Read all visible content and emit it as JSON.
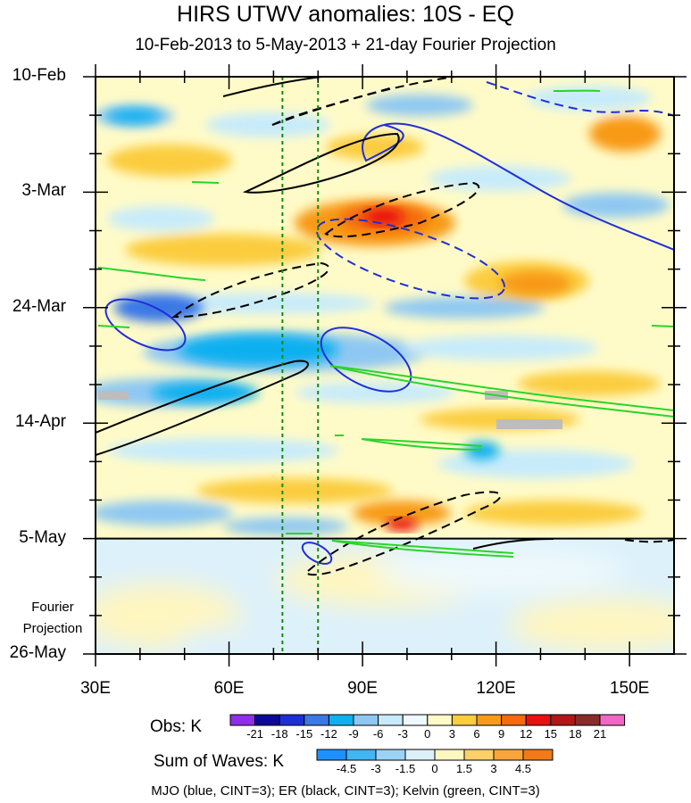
{
  "chart_data": {
    "type": "heatmap",
    "title": "HIRS UTWV anomalies: 10S - EQ",
    "subtitle": "10-Feb-2013 to 5-May-2013 + 21-day Fourier Projection",
    "xlabel": "",
    "ylabel": "",
    "x_range": [
      30,
      160
    ],
    "x_ticks": [
      "30E",
      "60E",
      "90E",
      "120E",
      "150E"
    ],
    "y_ticks": [
      "10-Feb",
      "3-Mar",
      "24-Mar",
      "14-Apr",
      "5-May",
      "26-May"
    ],
    "projection_start": "5-May",
    "projection_label": [
      "Fourier",
      "Projection"
    ],
    "reference_longitudes_dotted": [
      72,
      80
    ],
    "obs_colorbar": {
      "title": "Obs: K",
      "levels": [
        "-21",
        "-18",
        "-15",
        "-12",
        "-9",
        "-6",
        "-3",
        "0",
        "3",
        "6",
        "9",
        "12",
        "15",
        "18",
        "21"
      ],
      "colors": [
        "#8f2fe8",
        "#0a0a96",
        "#1f2fd6",
        "#3a78e6",
        "#10b0ef",
        "#8ec8f2",
        "#c7ebfb",
        "#eef9fd",
        "#fffbc8",
        "#fbcc3e",
        "#f89a19",
        "#f56a10",
        "#e81010",
        "#b01818",
        "#8a2b2b",
        "#f067c6"
      ]
    },
    "waves_colorbar": {
      "title": "Sum of Waves: K",
      "levels": [
        "-4.5",
        "-3",
        "-1.5",
        "0",
        "1.5",
        "3",
        "4.5"
      ],
      "colors": [
        "#1e90ff",
        "#42b5f4",
        "#9bd3f7",
        "#ddf1fb",
        "#fff6c0",
        "#fdd06a",
        "#fba43c",
        "#f27a17"
      ]
    },
    "anomaly_features": [
      {
        "lon": 96,
        "date": "7-Mar",
        "value": 14
      },
      {
        "lon": 99,
        "date": "2-May",
        "value": 13
      },
      {
        "lon": 131,
        "date": "16-Mar",
        "value": 9
      },
      {
        "lon": 68,
        "date": "2-Apr",
        "value": -9
      },
      {
        "lon": 45,
        "date": "11-Apr",
        "value": -8
      },
      {
        "lon": 80,
        "date": "1-May",
        "value": -7
      }
    ],
    "wave_contours": {
      "MJO": {
        "color": "blue",
        "cint": 3
      },
      "ER": {
        "color": "black",
        "cint": 3
      },
      "Kelvin": {
        "color": "green",
        "cint": 3
      }
    },
    "legend_text": "MJO (blue, CINT=3); ER (black, CINT=3); Kelvin (green, CINT=3)"
  }
}
